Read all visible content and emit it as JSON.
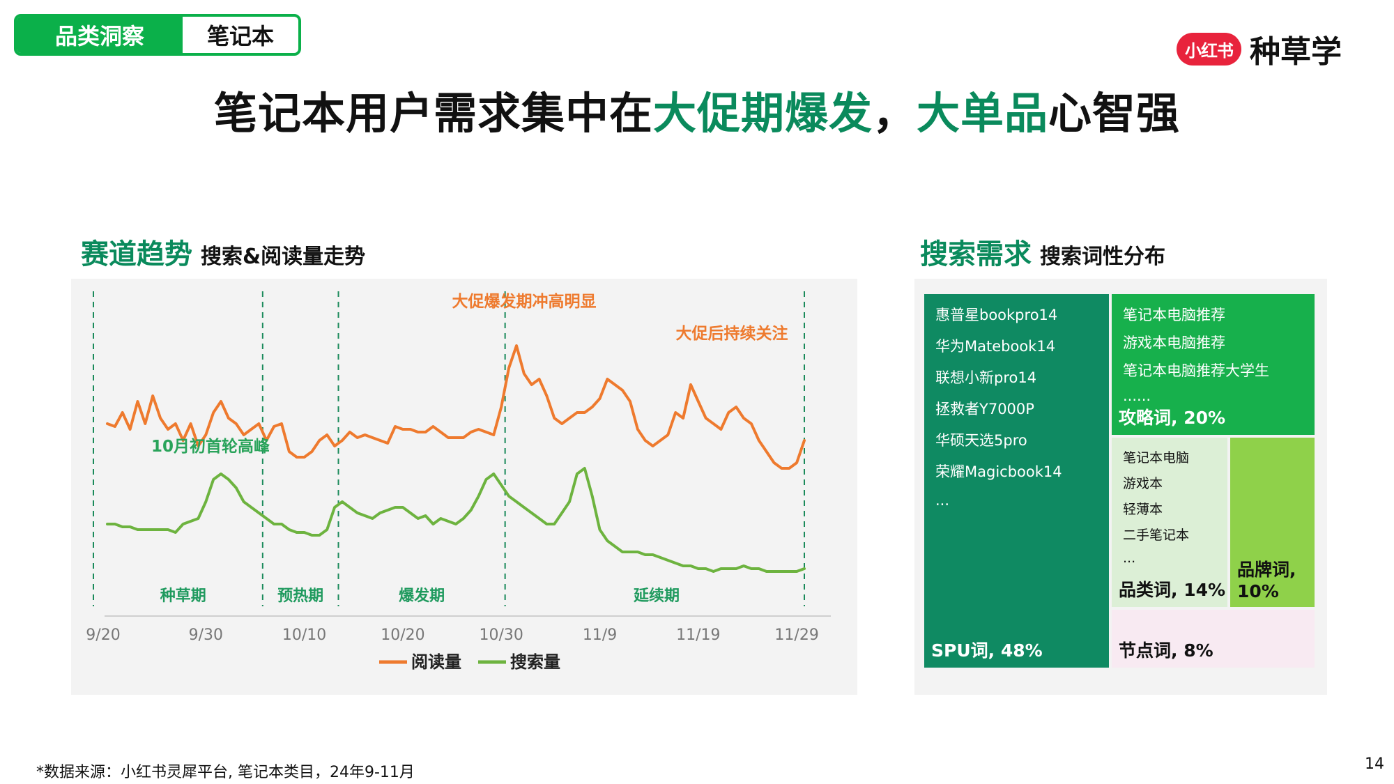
{
  "tag": {
    "category": "品类洞察",
    "product": "笔记本"
  },
  "brand": {
    "badge": "小红书",
    "name": "种草学"
  },
  "title": {
    "part1": "笔记本用户需求集中在",
    "highlight1": "大促期爆发",
    "part2": "，",
    "highlight2": "大单品",
    "part3": "心智强"
  },
  "left_section": {
    "main": "赛道趋势",
    "sub": "搜索&阅读量走势"
  },
  "right_section": {
    "main": "搜索需求",
    "sub": "搜索词性分布"
  },
  "chart_data": {
    "type": "line",
    "title": "",
    "xlabel": "",
    "ylabel": "",
    "x_ticks": [
      "9/20",
      "9/30",
      "10/10",
      "10/20",
      "10/30",
      "11/9",
      "11/19",
      "11/29"
    ],
    "series": [
      {
        "name": "阅读量",
        "color": "#ee7a2e",
        "values": [
          58,
          57,
          62,
          56,
          66,
          58,
          68,
          60,
          56,
          58,
          52,
          58,
          50,
          54,
          62,
          66,
          60,
          58,
          54,
          56,
          58,
          52,
          57,
          58,
          48,
          46,
          46,
          48,
          52,
          54,
          50,
          52,
          55,
          53,
          54,
          53,
          52,
          51,
          57,
          56,
          56,
          55,
          55,
          57,
          55,
          53,
          53,
          53,
          55,
          56,
          55,
          54,
          64,
          78,
          86,
          76,
          72,
          74,
          68,
          60,
          58,
          60,
          62,
          62,
          64,
          67,
          74,
          72,
          70,
          66,
          56,
          52,
          50,
          52,
          54,
          62,
          60,
          72,
          66,
          60,
          58,
          56,
          62,
          64,
          60,
          58,
          52,
          48,
          44,
          42,
          42,
          44,
          52
        ]
      },
      {
        "name": "搜索量",
        "color": "#6db33f",
        "values": [
          22,
          22,
          21,
          21,
          20,
          20,
          20,
          20,
          20,
          19,
          22,
          23,
          24,
          30,
          38,
          40,
          38,
          35,
          30,
          28,
          26,
          24,
          22,
          22,
          20,
          19,
          19,
          18,
          18,
          20,
          28,
          30,
          28,
          26,
          25,
          24,
          26,
          27,
          28,
          28,
          26,
          24,
          25,
          22,
          24,
          23,
          22,
          24,
          27,
          32,
          38,
          40,
          36,
          32,
          30,
          28,
          26,
          24,
          22,
          22,
          26,
          30,
          40,
          42,
          32,
          20,
          16,
          14,
          12,
          12,
          12,
          11,
          11,
          10,
          9,
          8,
          7,
          7,
          6,
          6,
          5,
          6,
          6,
          6,
          7,
          6,
          6,
          5,
          5,
          5,
          5,
          5,
          6
        ]
      }
    ],
    "phases": [
      {
        "label": "种草期"
      },
      {
        "label": "预热期"
      },
      {
        "label": "爆发期"
      },
      {
        "label": "延续期"
      }
    ],
    "annotations": [
      {
        "text": "大促爆发期冲高明显",
        "color": "#ee7a2e"
      },
      {
        "text": "大促后持续关注",
        "color": "#ee7a2e"
      },
      {
        "text": "10月初首轮高峰",
        "color": "#29a35a"
      }
    ],
    "legend": {
      "placement": "bottom-center"
    },
    "grid": false
  },
  "treemap": {
    "cells": [
      {
        "id": "spu",
        "label": "SPU词, 48%",
        "value": 48,
        "bg": "#0f8a62",
        "fg": "#ffffff",
        "items": [
          "惠普星bookpro14",
          "华为Matebook14",
          "联想小新pro14",
          "拯救者Y7000P",
          "华硕天选5pro",
          "荣耀Magicbook14",
          "..."
        ]
      },
      {
        "id": "strategy",
        "label": "攻略词, 20%",
        "value": 20,
        "bg": "#17b04c",
        "fg": "#ffffff",
        "items": [
          "笔记本电脑推荐",
          "游戏本电脑推荐",
          "笔记本电脑推荐大学生",
          "......"
        ]
      },
      {
        "id": "category",
        "label": "品类词, 14%",
        "value": 14,
        "bg": "#dcefd6",
        "fg": "#111111",
        "items": [
          "笔记本电脑",
          "游戏本",
          "轻薄本",
          "二手笔记本",
          "..."
        ]
      },
      {
        "id": "brandw",
        "label": "品牌词, 10%",
        "value": 10,
        "bg": "#8fd14a",
        "fg": "#111111",
        "items": []
      },
      {
        "id": "holiday",
        "label": "节点词, 8%",
        "value": 8,
        "bg": "#f8eaf2",
        "fg": "#111111",
        "items": []
      }
    ]
  },
  "footer": "*数据来源：小红书灵犀平台, 笔记本类目，24年9-11月",
  "page_number": "14"
}
